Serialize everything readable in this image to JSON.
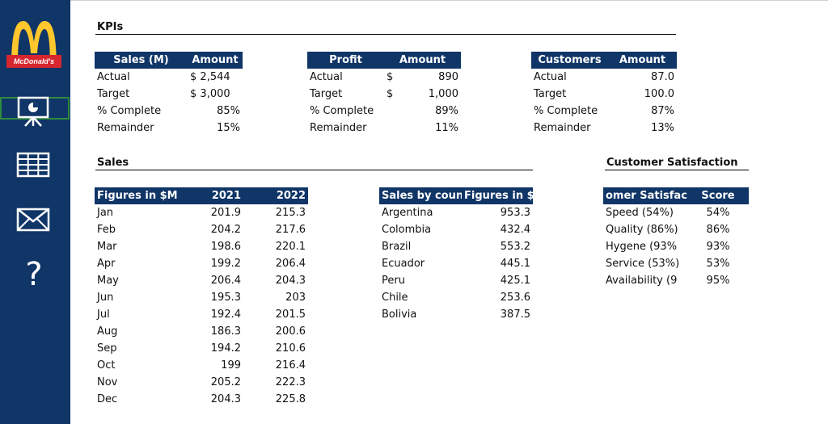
{
  "brand": {
    "name": "McDonald's",
    "accent": "#ffc72c",
    "red": "#d8262e",
    "navy": "#103567"
  },
  "nav": [
    {
      "icon": "presentation-icon",
      "selected": true
    },
    {
      "icon": "table-grid-icon"
    },
    {
      "icon": "mail-icon"
    },
    {
      "icon": "help-icon",
      "glyph": "?"
    }
  ],
  "kpis": {
    "title": "KPIs",
    "sales": {
      "headers": [
        "Sales (M)",
        "Amount"
      ],
      "rows": [
        {
          "label": "Actual",
          "prefix": "$",
          "value": "2,544"
        },
        {
          "label": "Target",
          "prefix": "$",
          "value": "3,000"
        },
        {
          "label": "% Complete",
          "prefix": "",
          "value": "85%"
        },
        {
          "label": "Remainder",
          "prefix": "",
          "value": "15%"
        }
      ]
    },
    "profit": {
      "headers": [
        "Profit",
        "Amount"
      ],
      "rows": [
        {
          "label": "Actual",
          "prefix": "$",
          "value": "890"
        },
        {
          "label": "Target",
          "prefix": "$",
          "value": "1,000"
        },
        {
          "label": "% Complete",
          "prefix": "",
          "value": "89%"
        },
        {
          "label": "Remainder",
          "prefix": "",
          "value": "11%"
        }
      ]
    },
    "customers": {
      "headers": [
        "Customers",
        "Amount"
      ],
      "rows": [
        {
          "label": "Actual",
          "value": "87.0"
        },
        {
          "label": "Target",
          "value": "100.0"
        },
        {
          "label": "% Complete",
          "value": "87%"
        },
        {
          "label": "Remainder",
          "value": "13%"
        }
      ]
    }
  },
  "sales": {
    "title": "Sales",
    "monthly": {
      "headers": [
        "Figures in $M",
        "2021",
        "2022"
      ],
      "rows": [
        [
          "Jan",
          "201.9",
          "215.3"
        ],
        [
          "Feb",
          "204.2",
          "217.6"
        ],
        [
          "Mar",
          "198.6",
          "220.1"
        ],
        [
          "Apr",
          "199.2",
          "206.4"
        ],
        [
          "May",
          "206.4",
          "204.3"
        ],
        [
          "Jun",
          "195.3",
          "203"
        ],
        [
          "Jul",
          "192.4",
          "201.5"
        ],
        [
          "Aug",
          "186.3",
          "200.6"
        ],
        [
          "Sep",
          "194.2",
          "210.6"
        ],
        [
          "Oct",
          "199",
          "216.4"
        ],
        [
          "Nov",
          "205.2",
          "222.3"
        ],
        [
          "Dec",
          "204.3",
          "225.8"
        ]
      ]
    },
    "by_country": {
      "headers": [
        "Sales by count",
        "Figures in $M"
      ],
      "rows": [
        [
          "Argentina",
          "953.3"
        ],
        [
          "Colombia",
          "432.4"
        ],
        [
          "Brazil",
          "553.2"
        ],
        [
          "Ecuador",
          "445.1"
        ],
        [
          "Peru",
          "425.1"
        ],
        [
          "Chile",
          "253.6"
        ],
        [
          "Bolivia",
          "387.5"
        ]
      ]
    }
  },
  "satisfaction": {
    "title": "Customer Satisfaction",
    "headers": [
      "omer Satisfac",
      "Score"
    ],
    "rows": [
      [
        "Speed (54%)",
        "54%"
      ],
      [
        "Quality (86%)",
        "86%"
      ],
      [
        "Hygene (93%",
        "93%"
      ],
      [
        "Service (53%)",
        "53%"
      ],
      [
        "Availability (9",
        "95%"
      ]
    ]
  }
}
